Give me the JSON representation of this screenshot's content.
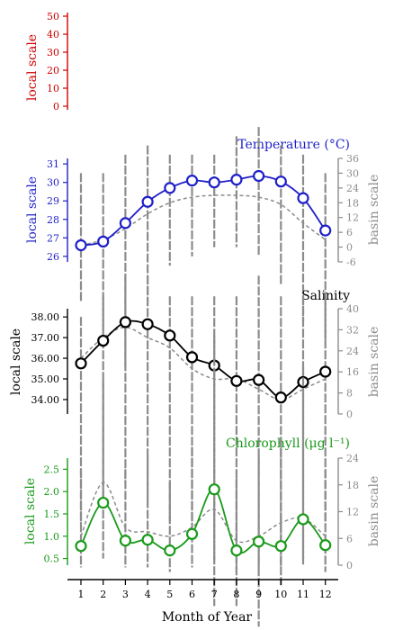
{
  "figure": {
    "xlabel": "Month of Year",
    "local_label": "local scale",
    "basin_label": "basin scale"
  },
  "colors": {
    "temperature": "#1f1fc8",
    "salinity": "#000000",
    "chlorophyll": "#1a9a1a",
    "empty_panel": "#cc0000",
    "basin": "#8c8c8c"
  },
  "chart_data": [
    {
      "type": "line",
      "title": "",
      "ylabel": "local scale",
      "ylim": [
        -2,
        52
      ],
      "yticks": [
        "0",
        "10",
        "20",
        "30",
        "40",
        "50"
      ],
      "x": [],
      "series": []
    },
    {
      "type": "line",
      "title": "Temperature (°C)",
      "ylabel": "local scale",
      "y2label": "basin scale",
      "ylim": [
        25.7,
        31.3
      ],
      "yticks": [
        "26",
        "27",
        "28",
        "29",
        "30",
        "31"
      ],
      "y2lim": [
        -6,
        36
      ],
      "y2ticks": [
        "-6",
        "0",
        "6",
        "12",
        "18",
        "24",
        "30",
        "36"
      ],
      "x": [
        1,
        2,
        3,
        4,
        5,
        6,
        7,
        8,
        9,
        10,
        11,
        12
      ],
      "local": [
        26.6,
        26.8,
        27.8,
        28.95,
        29.7,
        30.1,
        30.0,
        30.15,
        30.35,
        30.05,
        29.15,
        27.4
      ],
      "basin": [
        26.6,
        26.9,
        27.5,
        28.3,
        28.9,
        29.2,
        29.3,
        29.3,
        29.2,
        28.8,
        27.8,
        26.9
      ],
      "basin_ranges": [
        [
          23.5,
          30.5
        ],
        [
          22.0,
          30.5
        ],
        [
          20.0,
          31.5
        ],
        [
          23.5,
          32.0
        ],
        [
          25.5,
          31.5
        ],
        [
          26.0,
          31.5
        ],
        [
          26.5,
          31.5
        ],
        [
          26.5,
          32.5
        ],
        [
          26.0,
          33.0
        ],
        [
          24.5,
          32.0
        ],
        [
          22.5,
          31.5
        ],
        [
          21.5,
          30.5
        ]
      ]
    },
    {
      "type": "line",
      "title": "Salinity",
      "ylabel": "local scale",
      "y2label": "basin scale",
      "ylim": [
        33.3,
        38.4
      ],
      "yticks": [
        "34.00",
        "35.00",
        "36.00",
        "37.00",
        "38.00"
      ],
      "y2lim": [
        0,
        40
      ],
      "y2ticks": [
        "0",
        "8",
        "16",
        "24",
        "32",
        "40"
      ],
      "x": [
        1,
        2,
        3,
        4,
        5,
        6,
        7,
        8,
        9,
        10,
        11,
        12
      ],
      "local": [
        35.75,
        36.85,
        37.75,
        37.65,
        37.1,
        36.05,
        35.65,
        34.9,
        34.95,
        34.1,
        34.85,
        35.35
      ],
      "basin": [
        36.0,
        37.0,
        37.5,
        37.0,
        36.5,
        35.5,
        35.0,
        35.0,
        34.5,
        34.0,
        34.5,
        35.0
      ],
      "basin_ranges": [
        [
          28,
          38
        ],
        [
          29,
          39
        ],
        [
          30,
          40
        ],
        [
          29,
          40
        ],
        [
          28,
          39
        ],
        [
          28,
          39
        ],
        [
          24,
          39
        ],
        [
          24,
          39
        ],
        [
          23,
          40
        ],
        [
          25,
          39
        ],
        [
          26,
          39
        ],
        [
          28,
          39
        ]
      ]
    },
    {
      "type": "line",
      "title": "Chlorophyll (μg l⁻¹)",
      "ylabel": "local scale",
      "y2label": "basin scale",
      "ylim": [
        0.35,
        2.75
      ],
      "yticks": [
        "0.5",
        "1.0",
        "1.5",
        "2.0",
        "2.5"
      ],
      "y2lim": [
        0,
        24
      ],
      "y2ticks": [
        "0",
        "6",
        "12",
        "18",
        "24"
      ],
      "x": [
        1,
        2,
        3,
        4,
        5,
        6,
        7,
        8,
        9,
        10,
        11,
        12
      ],
      "local": [
        0.78,
        1.75,
        0.9,
        0.92,
        0.68,
        1.05,
        2.05,
        0.68,
        0.88,
        0.78,
        1.38,
        0.8
      ],
      "basin": [
        1.0,
        2.2,
        1.2,
        1.1,
        1.0,
        1.2,
        1.6,
        0.9,
        1.0,
        1.3,
        1.4,
        1.0
      ],
      "basin_ranges": [
        [
          0.3,
          2.5
        ],
        [
          0.5,
          4.5
        ],
        [
          0.3,
          2.5
        ],
        [
          0.3,
          2.8
        ],
        [
          0.2,
          2.2
        ],
        [
          0.3,
          3.0
        ],
        [
          0.4,
          5.5
        ],
        [
          0.2,
          2.3
        ],
        [
          0.3,
          2.8
        ],
        [
          0.3,
          3.2
        ],
        [
          0.5,
          4.8
        ],
        [
          0.2,
          2.5
        ]
      ]
    }
  ]
}
